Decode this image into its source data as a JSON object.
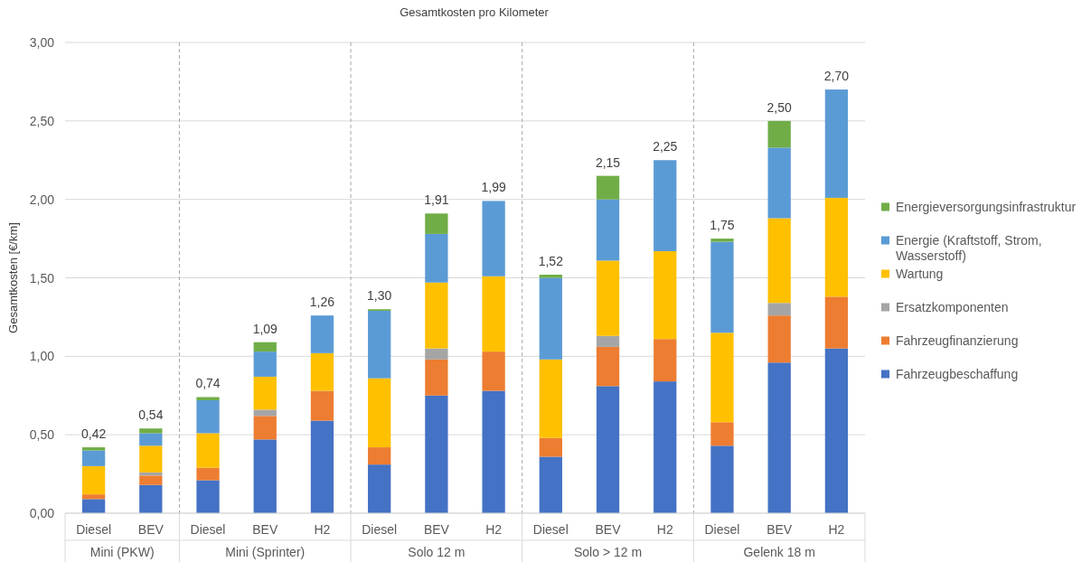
{
  "chart_data": {
    "type": "bar",
    "stacked": true,
    "title": "Gesamtkosten pro Kilometer",
    "ylabel": "Gesamtkosten [€/km]",
    "categories": [
      "Diesel",
      "BEV",
      "Diesel",
      "BEV",
      "H2",
      "Diesel",
      "BEV",
      "H2",
      "Diesel",
      "BEV",
      "H2",
      "Diesel",
      "BEV",
      "H2"
    ],
    "annotations": [
      "Mini (PKW)",
      "Mini (Sprinter)",
      "Solo 12 m",
      "Solo > 12 m",
      "Gelenk 18 m"
    ],
    "series": [
      {
        "name": "Fahrzeugbeschaffung",
        "color": "#4472c4",
        "values": [
          0.09,
          0.18,
          0.21,
          0.47,
          0.59,
          0.31,
          0.75,
          0.78,
          0.36,
          0.81,
          0.84,
          0.43,
          0.96,
          1.05
        ]
      },
      {
        "name": "Fahrzeugfinanzierung",
        "color": "#ed7d31",
        "values": [
          0.03,
          0.06,
          0.08,
          0.15,
          0.19,
          0.11,
          0.23,
          0.25,
          0.12,
          0.25,
          0.27,
          0.15,
          0.3,
          0.33
        ]
      },
      {
        "name": "Ersatzkomponenten",
        "color": "#a5a5a5",
        "values": [
          null,
          0.02,
          null,
          0.04,
          null,
          null,
          0.07,
          null,
          null,
          0.07,
          null,
          null,
          0.08,
          null
        ]
      },
      {
        "name": "Wartung",
        "color": "#ffc000",
        "values": [
          0.18,
          0.17,
          0.22,
          0.21,
          0.24,
          0.44,
          0.42,
          0.48,
          0.5,
          0.48,
          0.56,
          0.57,
          0.54,
          0.63
        ]
      },
      {
        "name": "Energie (Kraftstoff, Strom, Wasserstoff)",
        "color": "#5b9bd5",
        "values": [
          0.1,
          0.08,
          0.21,
          0.16,
          0.24,
          0.43,
          0.31,
          0.48,
          0.52,
          0.39,
          0.58,
          0.58,
          0.45,
          0.69
        ]
      },
      {
        "name": "Energieversorgungsinfrastruktur",
        "color": "#70ad47",
        "values": [
          0.02,
          0.03,
          0.02,
          0.06,
          null,
          0.01,
          0.13,
          null,
          0.02,
          0.15,
          null,
          0.02,
          0.17,
          null
        ]
      }
    ],
    "totals": [
      "0,42",
      "0,54",
      "0,74",
      "1,09",
      "1,26",
      "1,30",
      "1,91",
      "1,99",
      "1,52",
      "2,15",
      "2,25",
      "1,75",
      "2,50",
      "2,70"
    ],
    "ylim": [
      0,
      3
    ],
    "yticks": [
      {
        "value": 0,
        "label": "0,00"
      },
      {
        "value": 0.5,
        "label": "0,50"
      },
      {
        "value": 1,
        "label": "1,00"
      },
      {
        "value": 1.5,
        "label": "1,50"
      },
      {
        "value": 2,
        "label": "2,00"
      },
      {
        "value": 2.5,
        "label": "2,50"
      },
      {
        "value": 3,
        "label": "3,00"
      }
    ],
    "grid": "y",
    "legend": "right"
  }
}
